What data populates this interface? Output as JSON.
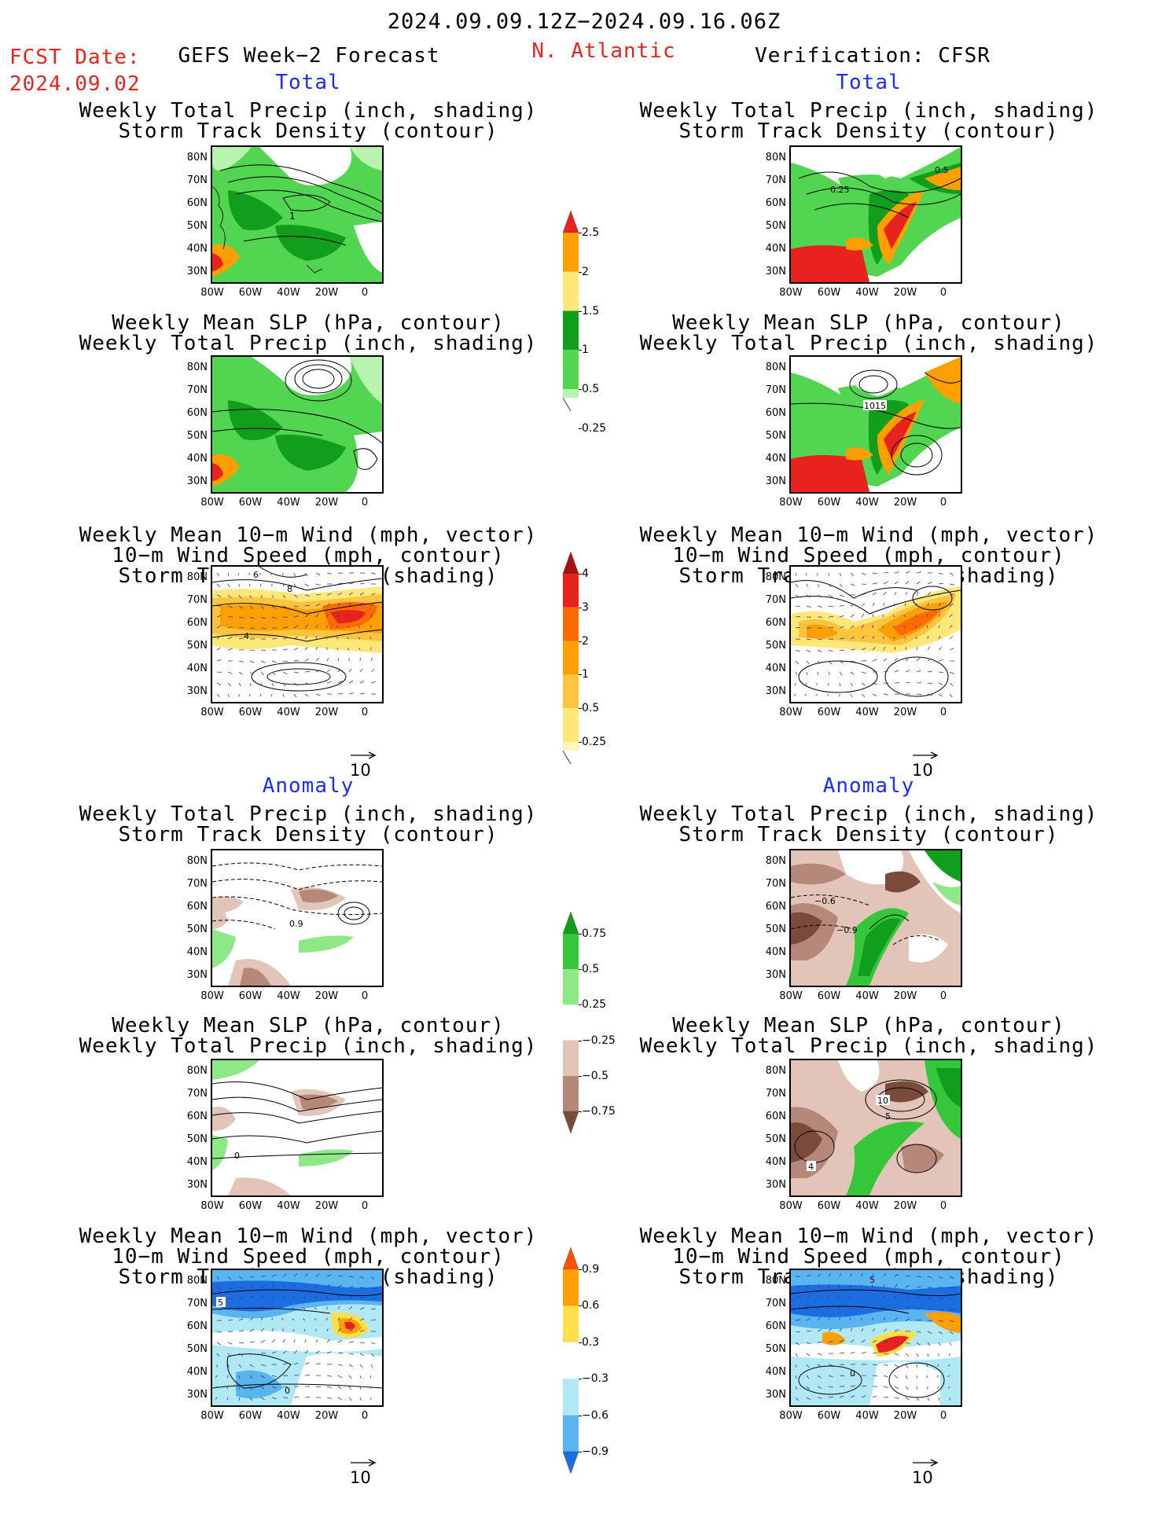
{
  "header": {
    "date_range": "2024.09.09.12Z−2024.09.16.06Z",
    "fcst_label": "FCST Date:",
    "fcst_date": "2024.09.02",
    "left_title": "GEFS Week−2 Forecast",
    "region": "N. Atlantic",
    "right_title": "Verification: CFSR"
  },
  "sections": {
    "total": "Total",
    "anomaly": "Anomaly"
  },
  "panel_titles": {
    "precip_track": [
      "Weekly Total Precip (inch, shading)",
      "Storm Track Density (contour)"
    ],
    "slp_precip": [
      "Weekly Mean SLP (hPa, contour)",
      "Weekly Total Precip (inch, shading)"
    ],
    "wind_track": [
      "Weekly Mean 10−m Wind (mph, vector)",
      "10−m Wind Speed (mph, contour)",
      "Storm Track Density (shading)"
    ]
  },
  "axes": {
    "lat_labels": [
      "80N",
      "70N",
      "60N",
      "50N",
      "40N",
      "30N"
    ],
    "lon_labels": [
      "80W",
      "60W",
      "40W",
      "20W",
      "0"
    ]
  },
  "vector_scale": "10",
  "colorbars": {
    "precip_total": {
      "labels": [
        "2.5",
        "2",
        "1.5",
        "1",
        "0.5",
        "0.25"
      ],
      "colors": [
        "#e8231f",
        "#ff9f00",
        "#ffe878",
        "#119e1c",
        "#52d652",
        "#b8f4b0"
      ]
    },
    "track_total": {
      "labels": [
        "4",
        "3",
        "2",
        "1",
        "0.5",
        "0.25"
      ],
      "colors": [
        "#a8120e",
        "#e8231f",
        "#ff6a00",
        "#ff9f00",
        "#ffc43e",
        "#ffe878",
        "#fff6b8"
      ]
    },
    "precip_anom": {
      "labels": [
        "0.75",
        "0.5",
        "0.25",
        "−0.25",
        "−0.5",
        "−0.75"
      ],
      "colors": [
        "#119e1c",
        "#35c63a",
        "#8ee888",
        "#ffffff",
        "#e2c4b8",
        "#b6887a",
        "#7a4a3a"
      ]
    },
    "track_anom": {
      "labels": [
        "0.9",
        "0.6",
        "0.3",
        "−0.3",
        "−0.6",
        "−0.9"
      ],
      "colors": [
        "#ff5000",
        "#ff9f00",
        "#ffe04a",
        "#ffffff",
        "#b0e8f4",
        "#5ab4f0",
        "#1c6ee0"
      ]
    }
  },
  "contour_labels": {
    "p1": "1",
    "v1a": "0.5",
    "v1b": "0.25",
    "v2": "1015",
    "p3a": "6",
    "p3b": "8",
    "p3c": "4",
    "p4": "0.9",
    "v4a": "−0.6",
    "v4b": "−0.9",
    "p5": "0",
    "v5a": "10",
    "v5b": "5",
    "v5c": "4",
    "p6a": "5",
    "p6b": "0",
    "v6a": "5",
    "v6b": "0"
  }
}
